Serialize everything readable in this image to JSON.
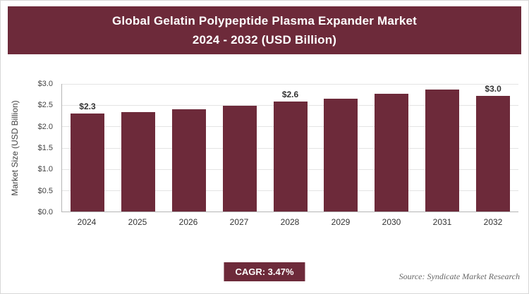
{
  "header": {
    "title_line1": "Global Gelatin Polypeptide Plasma Expander Market",
    "title_line2": "2024 - 2032 (USD Billion)"
  },
  "chart_data": {
    "type": "bar",
    "title": "Global Gelatin Polypeptide Plasma Expander Market 2024 - 2032 (USD Billion)",
    "categories": [
      "2024",
      "2025",
      "2026",
      "2027",
      "2028",
      "2029",
      "2030",
      "2031",
      "2032"
    ],
    "values": [
      2.3,
      2.33,
      2.41,
      2.49,
      2.58,
      2.66,
      2.76,
      2.86,
      2.97
    ],
    "bar_labels": [
      "$2.3",
      "",
      "",
      "",
      "$2.6",
      "",
      "",
      "",
      "$3.0"
    ],
    "xlabel": "",
    "ylabel": "Market Size (USD Billion)",
    "ylim": [
      0,
      3.0
    ],
    "ytick_values": [
      0,
      0.5,
      1.0,
      1.5,
      2.0,
      2.5,
      3.0
    ],
    "ytick_labels": [
      "$0.0",
      "$0.5",
      "$1.0",
      "$1.5",
      "$2.0",
      "$2.5",
      "$3.0"
    ],
    "grid": true,
    "legend": "none",
    "bar_color": "#6D2A3A"
  },
  "footer": {
    "cagr_label": "CAGR: 3.47%",
    "source": "Source: Syndicate Market Research"
  },
  "colors": {
    "accent": "#6D2A3A",
    "grid": "#E4E4E4",
    "axis": "#B5B5B5",
    "text": "#333333",
    "source_text": "#666666",
    "background": "#FFFFFF",
    "border": "#D8D8D8"
  }
}
